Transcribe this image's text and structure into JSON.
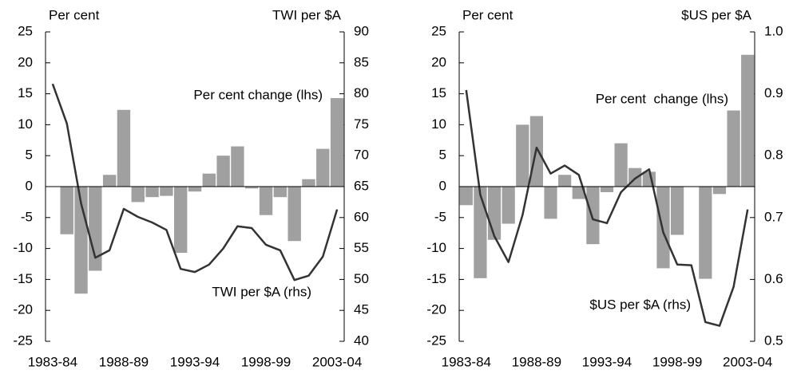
{
  "chart_data": [
    {
      "type": "combo",
      "y_label": "Per cent",
      "y2_label": "TWI per $A",
      "categories": [
        "1983-84",
        null,
        null,
        null,
        null,
        "1988-89",
        null,
        null,
        null,
        null,
        "1993-94",
        null,
        null,
        null,
        null,
        "1998-99",
        null,
        null,
        null,
        null,
        "2003-04"
      ],
      "series": [
        {
          "name": "Per cent change (lhs)",
          "type": "bar",
          "color": "#a0a0a0",
          "values": [
            null,
            -7.7,
            -17.3,
            -13.6,
            1.9,
            12.4,
            -2.5,
            -1.7,
            -1.5,
            -10.7,
            -0.8,
            2.1,
            5.0,
            6.5,
            -0.3,
            -4.6,
            -1.7,
            -8.8,
            1.2,
            6.1,
            14.3
          ]
        },
        {
          "name": "TWI per $A (rhs)",
          "type": "line",
          "axis": "y2",
          "color": "#333333",
          "values": [
            81.6,
            75.2,
            62.3,
            53.5,
            54.7,
            61.4,
            60.1,
            59.2,
            58.0,
            51.7,
            51.2,
            52.4,
            55.0,
            58.6,
            58.3,
            55.6,
            54.7,
            49.9,
            50.6,
            53.7,
            61.3
          ]
        }
      ],
      "ylim": [
        -25,
        25
      ],
      "yticks": [
        -25,
        -20,
        -15,
        -10,
        -5,
        0,
        5,
        10,
        15,
        20,
        25
      ],
      "y2lim": [
        40,
        90
      ],
      "y2ticks": [
        40,
        45,
        50,
        55,
        60,
        65,
        70,
        75,
        80,
        85,
        90
      ]
    },
    {
      "type": "combo",
      "y_label": "Per cent",
      "y2_label": "$US per $A",
      "categories": [
        "1983-84",
        null,
        null,
        null,
        null,
        "1988-89",
        null,
        null,
        null,
        null,
        "1993-94",
        null,
        null,
        null,
        null,
        "1998-99",
        null,
        null,
        null,
        null,
        "2003-04"
      ],
      "series": [
        {
          "name": "Per cent  change (lhs)",
          "type": "bar",
          "color": "#a0a0a0",
          "values": [
            -3.0,
            -14.8,
            -8.6,
            -6.0,
            10.0,
            11.4,
            -5.2,
            1.9,
            -2.0,
            -9.3,
            -0.9,
            7.0,
            3.0,
            2.4,
            -13.2,
            -7.8,
            0,
            -14.9,
            -1.2,
            12.3,
            21.3
          ]
        },
        {
          "name": "$US per $A (rhs)",
          "type": "line",
          "axis": "y2",
          "color": "#333333",
          "values": [
            0.906,
            0.737,
            0.67,
            0.628,
            0.704,
            0.813,
            0.771,
            0.784,
            0.769,
            0.697,
            0.691,
            0.741,
            0.763,
            0.778,
            0.676,
            0.624,
            0.623,
            0.531,
            0.525,
            0.588,
            0.713
          ]
        }
      ],
      "ylim": [
        -25,
        25
      ],
      "yticks": [
        -25,
        -20,
        -15,
        -10,
        -5,
        0,
        5,
        10,
        15,
        20,
        25
      ],
      "y2lim": [
        0.5,
        1.0
      ],
      "y2ticks": [
        0.5,
        0.6,
        0.7,
        0.8,
        0.9,
        {
          "value": 1,
          "label": "1.0"
        }
      ]
    }
  ]
}
